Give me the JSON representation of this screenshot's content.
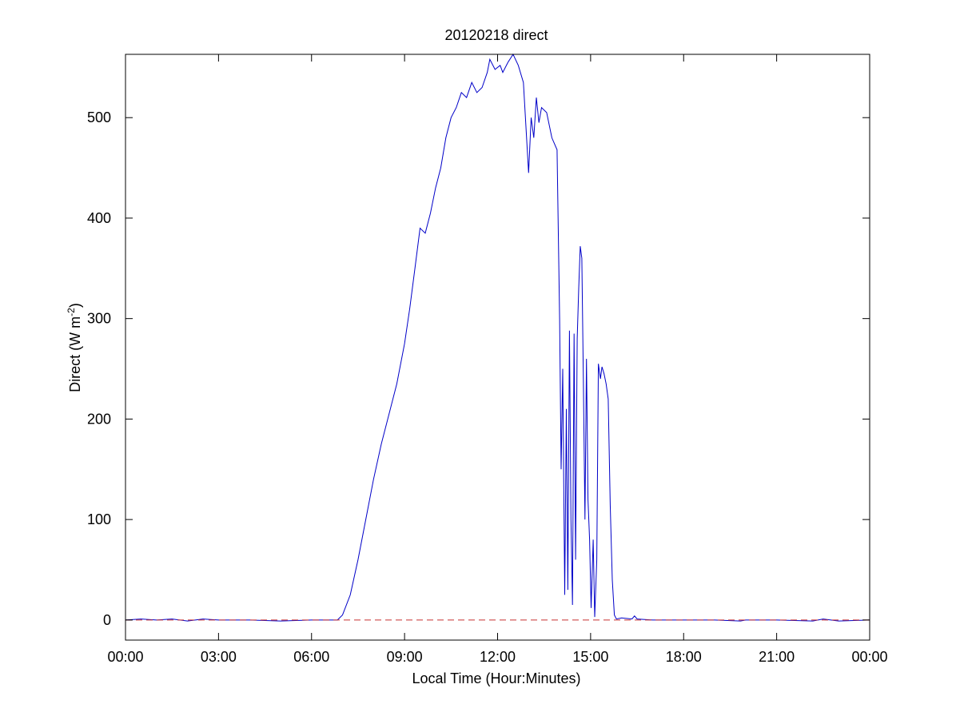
{
  "chart_data": {
    "type": "line",
    "title": "20120218 direct",
    "xlabel": "Local Time (Hour:Minutes)",
    "ylabel": {
      "main": "Direct (W m",
      "superscript": "-2",
      "close": ")"
    },
    "xlim": [
      "00:00",
      "24:00"
    ],
    "ylim": [
      -20,
      563
    ],
    "x_ticks": [
      "00:00",
      "03:00",
      "06:00",
      "09:00",
      "12:00",
      "15:00",
      "18:00",
      "21:00",
      "00:00"
    ],
    "y_ticks": [
      0,
      100,
      200,
      300,
      400,
      500
    ],
    "grid": false,
    "legend": "none",
    "series": [
      {
        "color": "#0000c8",
        "style": "solid",
        "points": [
          [
            "00:00",
            0
          ],
          [
            "00:30",
            1
          ],
          [
            "01:00",
            0
          ],
          [
            "01:30",
            1
          ],
          [
            "02:00",
            -1
          ],
          [
            "02:30",
            1
          ],
          [
            "03:00",
            0
          ],
          [
            "04:00",
            0
          ],
          [
            "05:00",
            -1
          ],
          [
            "06:00",
            0
          ],
          [
            "06:50",
            0
          ],
          [
            "07:00",
            5
          ],
          [
            "07:15",
            25
          ],
          [
            "07:30",
            60
          ],
          [
            "07:45",
            100
          ],
          [
            "08:00",
            140
          ],
          [
            "08:15",
            175
          ],
          [
            "08:30",
            205
          ],
          [
            "08:45",
            235
          ],
          [
            "09:00",
            275
          ],
          [
            "09:10",
            310
          ],
          [
            "09:20",
            350
          ],
          [
            "09:30",
            390
          ],
          [
            "09:40",
            385
          ],
          [
            "09:50",
            405
          ],
          [
            "10:00",
            430
          ],
          [
            "10:10",
            450
          ],
          [
            "10:20",
            480
          ],
          [
            "10:30",
            500
          ],
          [
            "10:40",
            510
          ],
          [
            "10:50",
            525
          ],
          [
            "11:00",
            520
          ],
          [
            "11:10",
            535
          ],
          [
            "11:20",
            525
          ],
          [
            "11:30",
            530
          ],
          [
            "11:40",
            545
          ],
          [
            "11:45",
            558
          ],
          [
            "11:55",
            548
          ],
          [
            "12:05",
            552
          ],
          [
            "12:10",
            545
          ],
          [
            "12:20",
            555
          ],
          [
            "12:30",
            563
          ],
          [
            "12:40",
            552
          ],
          [
            "12:50",
            535
          ],
          [
            "13:00",
            445
          ],
          [
            "13:05",
            500
          ],
          [
            "13:10",
            480
          ],
          [
            "13:15",
            520
          ],
          [
            "13:20",
            495
          ],
          [
            "13:25",
            510
          ],
          [
            "13:35",
            505
          ],
          [
            "13:45",
            480
          ],
          [
            "13:55",
            468
          ],
          [
            "14:00",
            300
          ],
          [
            "14:03",
            150
          ],
          [
            "14:06",
            250
          ],
          [
            "14:10",
            25
          ],
          [
            "14:13",
            210
          ],
          [
            "14:16",
            30
          ],
          [
            "14:19",
            288
          ],
          [
            "14:22",
            100
          ],
          [
            "14:25",
            15
          ],
          [
            "14:28",
            285
          ],
          [
            "14:31",
            60
          ],
          [
            "14:34",
            280
          ],
          [
            "14:37",
            330
          ],
          [
            "14:40",
            372
          ],
          [
            "14:43",
            360
          ],
          [
            "14:46",
            240
          ],
          [
            "14:49",
            100
          ],
          [
            "14:52",
            260
          ],
          [
            "14:55",
            120
          ],
          [
            "14:58",
            80
          ],
          [
            "15:01",
            12
          ],
          [
            "15:05",
            80
          ],
          [
            "15:08",
            3
          ],
          [
            "15:12",
            60
          ],
          [
            "15:15",
            255
          ],
          [
            "15:19",
            240
          ],
          [
            "15:22",
            252
          ],
          [
            "15:26",
            245
          ],
          [
            "15:30",
            235
          ],
          [
            "15:34",
            220
          ],
          [
            "15:38",
            115
          ],
          [
            "15:42",
            40
          ],
          [
            "15:46",
            5
          ],
          [
            "15:50",
            1
          ],
          [
            "16:00",
            2
          ],
          [
            "16:20",
            1
          ],
          [
            "16:25",
            4
          ],
          [
            "16:30",
            1
          ],
          [
            "17:00",
            0
          ],
          [
            "18:00",
            0
          ],
          [
            "19:00",
            0
          ],
          [
            "19:50",
            -1
          ],
          [
            "20:00",
            0
          ],
          [
            "21:00",
            0
          ],
          [
            "22:10",
            -1
          ],
          [
            "22:30",
            1
          ],
          [
            "23:00",
            -1
          ],
          [
            "24:00",
            0
          ]
        ]
      },
      {
        "color": "#c83232",
        "style": "dashed",
        "points": [
          [
            "00:00",
            0
          ],
          [
            "24:00",
            0
          ]
        ]
      }
    ]
  }
}
